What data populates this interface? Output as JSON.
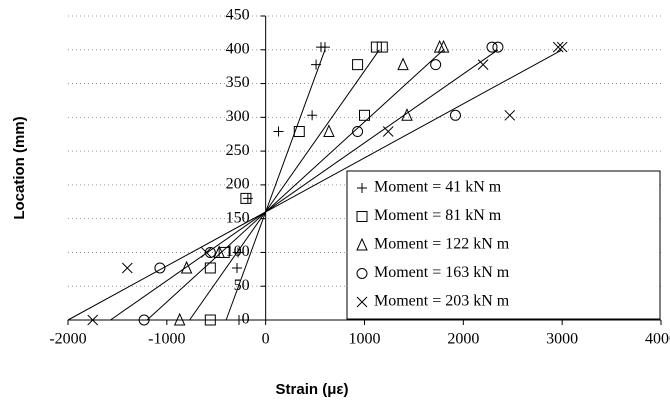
{
  "chart_data": {
    "type": "scatter",
    "x_label": "Strain (με)",
    "y_label": "Location (mm)",
    "xlim": [
      -2000,
      4000
    ],
    "xticks": [
      -2000,
      -1000,
      0,
      1000,
      2000,
      3000,
      4000
    ],
    "ylim": [
      0,
      450
    ],
    "yticks": [
      0,
      50,
      100,
      150,
      200,
      250,
      300,
      350,
      400,
      450
    ],
    "grid": true,
    "legend": "lower right",
    "fit_y": [
      0,
      400
    ],
    "series": [
      {
        "name": "Moment = 41 kN m",
        "color": "#000000",
        "marker": "plus",
        "x": [
          560,
          600,
          510,
          470,
          130,
          -180,
          -280,
          -290,
          -270
        ],
        "y": [
          404,
          404,
          378,
          303,
          279,
          180,
          100,
          77,
          0
        ],
        "fit_x": [
          -400,
          600
        ]
      },
      {
        "name": "Moment = 81 kN m",
        "color": "#000000",
        "marker": "square",
        "x": [
          1120,
          1180,
          930,
          1000,
          340,
          -200,
          -420,
          -560,
          -560
        ],
        "y": [
          404,
          404,
          378,
          303,
          279,
          180,
          100,
          77,
          0
        ],
        "fit_x": [
          -770,
          1150
        ]
      },
      {
        "name": "Moment = 122 kN m",
        "color": "#000000",
        "marker": "triangle",
        "x": [
          1760,
          1800,
          1390,
          1430,
          640,
          -470,
          -800,
          -870
        ],
        "y": [
          404,
          404,
          378,
          303,
          279,
          100,
          77,
          0
        ],
        "fit_x": [
          -1200,
          1800
        ]
      },
      {
        "name": "Moment = 163 kN m",
        "color": "#000000",
        "marker": "circle",
        "x": [
          2290,
          2350,
          1720,
          1920,
          930,
          -560,
          -1070,
          -1230
        ],
        "y": [
          404,
          404,
          378,
          303,
          279,
          100,
          77,
          0
        ],
        "fit_x": [
          -1570,
          2350
        ]
      },
      {
        "name": "Moment = 203 kN m",
        "color": "#000000",
        "marker": "x",
        "x": [
          2960,
          3000,
          2200,
          2470,
          1240,
          -600,
          -1400,
          -1750
        ],
        "y": [
          404,
          404,
          378,
          303,
          279,
          100,
          77,
          0
        ],
        "fit_x": [
          -2000,
          3000
        ]
      }
    ]
  }
}
